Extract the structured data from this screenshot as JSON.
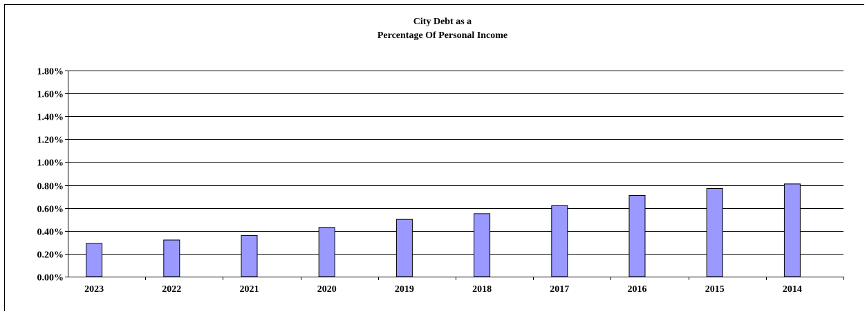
{
  "chart_data": {
    "type": "bar",
    "title_lines": [
      "City Debt as a",
      "Percentage Of Personal Income"
    ],
    "xlabel": "",
    "ylabel": "",
    "categories": [
      "2023",
      "2022",
      "2021",
      "2020",
      "2019",
      "2018",
      "2017",
      "2016",
      "2015",
      "2014"
    ],
    "values": [
      0.0029,
      0.0032,
      0.0036,
      0.0043,
      0.005,
      0.0055,
      0.0062,
      0.0071,
      0.0077,
      0.0081
    ],
    "ylim": [
      0,
      0.018
    ],
    "y_ticks": [
      "0.00%",
      "0.20%",
      "0.40%",
      "0.60%",
      "0.80%",
      "1.00%",
      "1.20%",
      "1.40%",
      "1.60%",
      "1.80%"
    ],
    "grid": true,
    "legend": "none",
    "colors": {
      "bar_fill": "#9999ff",
      "bar_stroke": "#000000",
      "grid": "#000000"
    }
  }
}
